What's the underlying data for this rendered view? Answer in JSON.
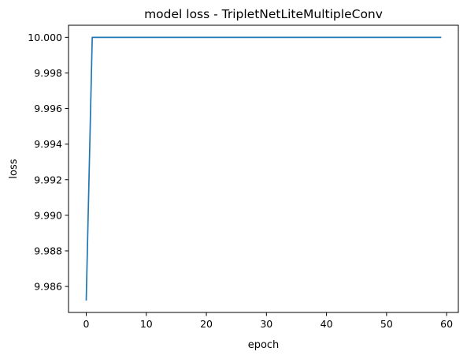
{
  "chart_data": {
    "type": "line",
    "title": "model loss - TripletNetLiteMultipleConv",
    "xlabel": "epoch",
    "ylabel": "loss",
    "xlim": [
      -2.95,
      61.95
    ],
    "ylim": [
      9.98454,
      10.00068
    ],
    "xticks": [
      0,
      10,
      20,
      30,
      40,
      50,
      60
    ],
    "xtick_labels": [
      "0",
      "10",
      "20",
      "30",
      "40",
      "50",
      "60"
    ],
    "yticks": [
      9.986,
      9.988,
      9.99,
      9.992,
      9.994,
      9.996,
      9.998,
      10.0
    ],
    "ytick_labels": [
      "9.986",
      "9.988",
      "9.990",
      "9.992",
      "9.994",
      "9.996",
      "9.998",
      "10.000"
    ],
    "grid": false,
    "series": [
      {
        "color": "#1f77b4",
        "x": [
          0,
          1,
          59
        ],
        "y": [
          9.98525,
          10.0,
          10.0
        ]
      }
    ]
  }
}
